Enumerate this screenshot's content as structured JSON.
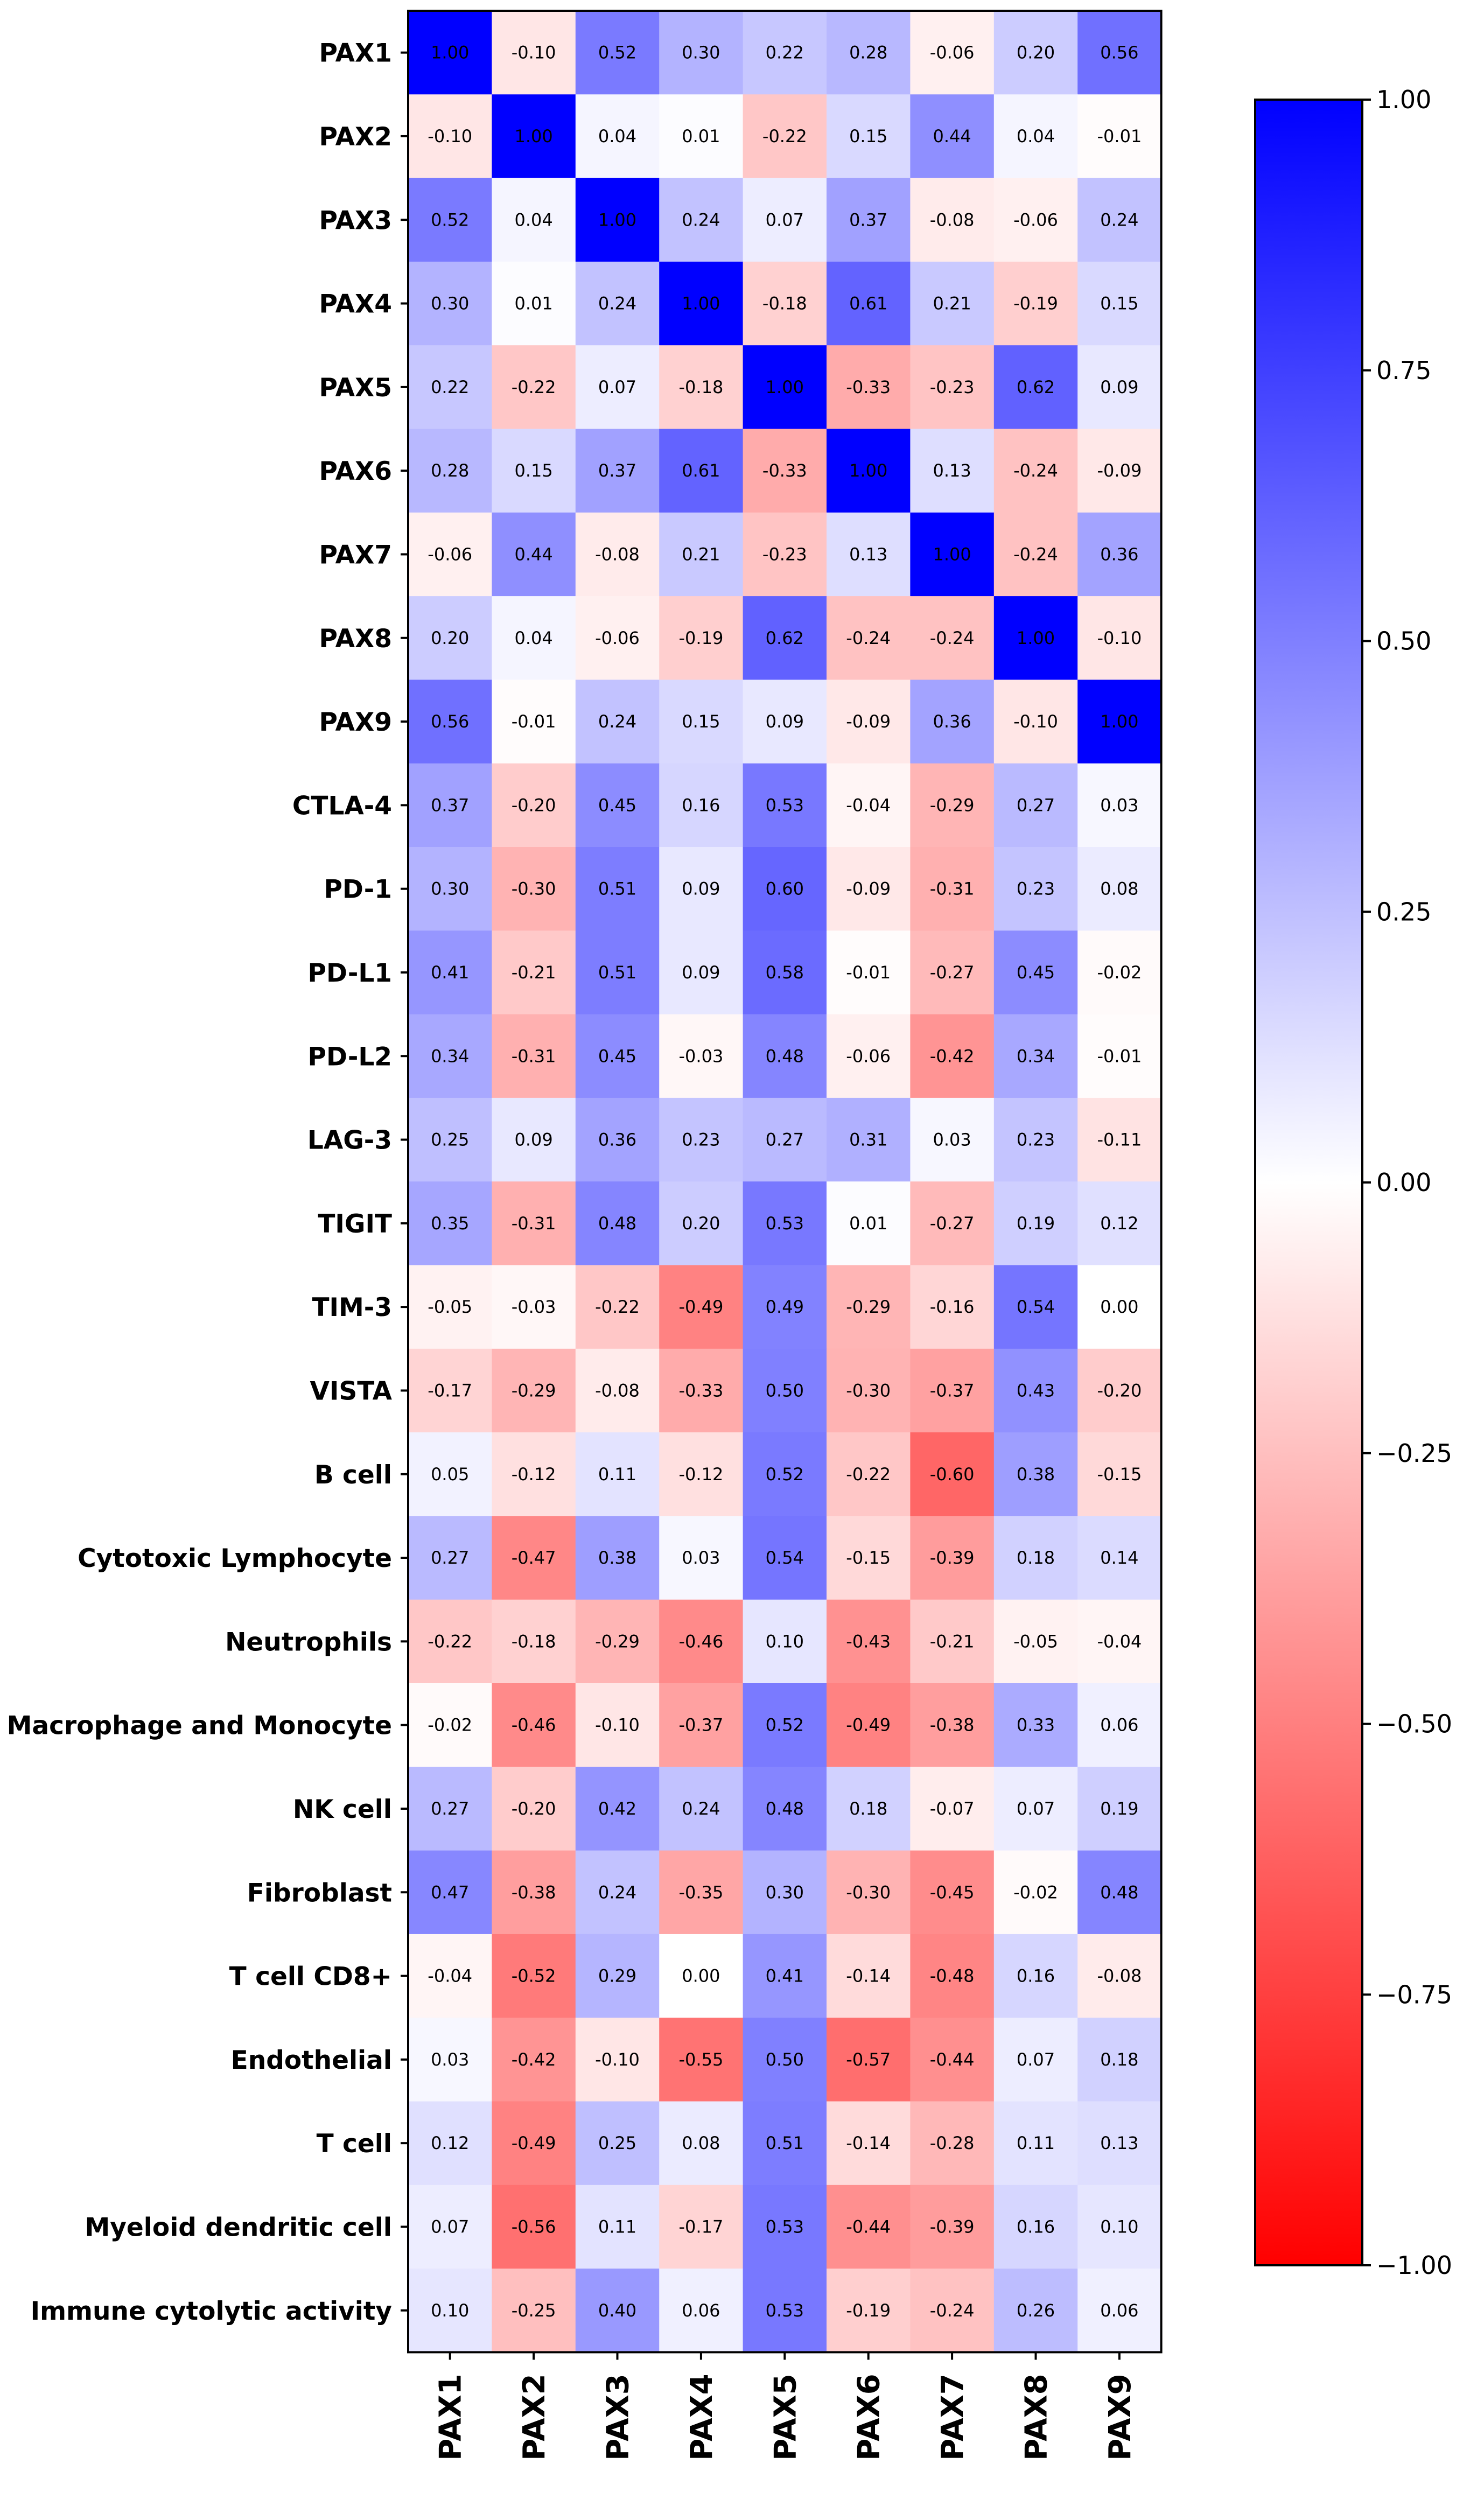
{
  "chart_data": {
    "type": "heatmap",
    "title": "",
    "xlabel": "",
    "ylabel": "",
    "columns": [
      "PAX1",
      "PAX2",
      "PAX3",
      "PAX4",
      "PAX5",
      "PAX6",
      "PAX7",
      "PAX8",
      "PAX9"
    ],
    "rows": [
      "PAX1",
      "PAX2",
      "PAX3",
      "PAX4",
      "PAX5",
      "PAX6",
      "PAX7",
      "PAX8",
      "PAX9",
      "CTLA-4",
      "PD-1",
      "PD-L1",
      "PD-L2",
      "LAG-3",
      "TIGIT",
      "TIM-3",
      "VISTA",
      "B cell",
      "Cytotoxic Lymphocyte",
      "Neutrophils",
      "Macrophage and Monocyte",
      "NK cell",
      "Fibroblast",
      "T cell CD8+",
      "Endothelial",
      "T cell",
      "Myeloid dendritic cell",
      "Immune cytolytic activity"
    ],
    "values": [
      [
        1.0,
        -0.1,
        0.52,
        0.3,
        0.22,
        0.28,
        -0.06,
        0.2,
        0.56
      ],
      [
        -0.1,
        1.0,
        0.04,
        0.01,
        -0.22,
        0.15,
        0.44,
        0.04,
        -0.01
      ],
      [
        0.52,
        0.04,
        1.0,
        0.24,
        0.07,
        0.37,
        -0.08,
        -0.06,
        0.24
      ],
      [
        0.3,
        0.01,
        0.24,
        1.0,
        -0.18,
        0.61,
        0.21,
        -0.19,
        0.15
      ],
      [
        0.22,
        -0.22,
        0.07,
        -0.18,
        1.0,
        -0.33,
        -0.23,
        0.62,
        0.09
      ],
      [
        0.28,
        0.15,
        0.37,
        0.61,
        -0.33,
        1.0,
        0.13,
        -0.24,
        -0.09
      ],
      [
        -0.06,
        0.44,
        -0.08,
        0.21,
        -0.23,
        0.13,
        1.0,
        -0.24,
        0.36
      ],
      [
        0.2,
        0.04,
        -0.06,
        -0.19,
        0.62,
        -0.24,
        -0.24,
        1.0,
        -0.1
      ],
      [
        0.56,
        -0.01,
        0.24,
        0.15,
        0.09,
        -0.09,
        0.36,
        -0.1,
        1.0
      ],
      [
        0.37,
        -0.2,
        0.45,
        0.16,
        0.53,
        -0.04,
        -0.29,
        0.27,
        0.03
      ],
      [
        0.3,
        -0.3,
        0.51,
        0.09,
        0.6,
        -0.09,
        -0.31,
        0.23,
        0.08
      ],
      [
        0.41,
        -0.21,
        0.51,
        0.09,
        0.58,
        -0.01,
        -0.27,
        0.45,
        -0.02
      ],
      [
        0.34,
        -0.31,
        0.45,
        -0.03,
        0.48,
        -0.06,
        -0.42,
        0.34,
        -0.01
      ],
      [
        0.25,
        0.09,
        0.36,
        0.23,
        0.27,
        0.31,
        0.03,
        0.23,
        -0.11
      ],
      [
        0.35,
        -0.31,
        0.48,
        0.2,
        0.53,
        0.01,
        -0.27,
        0.19,
        0.12
      ],
      [
        -0.05,
        -0.03,
        -0.22,
        -0.49,
        0.49,
        -0.29,
        -0.16,
        0.54,
        0.0
      ],
      [
        -0.17,
        -0.29,
        -0.08,
        -0.33,
        0.5,
        -0.3,
        -0.37,
        0.43,
        -0.2
      ],
      [
        0.05,
        -0.12,
        0.11,
        -0.12,
        0.52,
        -0.22,
        -0.6,
        0.38,
        -0.15
      ],
      [
        0.27,
        -0.47,
        0.38,
        0.03,
        0.54,
        -0.15,
        -0.39,
        0.18,
        0.14
      ],
      [
        -0.22,
        -0.18,
        -0.29,
        -0.46,
        0.1,
        -0.43,
        -0.21,
        -0.05,
        -0.04
      ],
      [
        -0.02,
        -0.46,
        -0.1,
        -0.37,
        0.52,
        -0.49,
        -0.38,
        0.33,
        0.06
      ],
      [
        0.27,
        -0.2,
        0.42,
        0.24,
        0.48,
        0.18,
        -0.07,
        0.07,
        0.19
      ],
      [
        0.47,
        -0.38,
        0.24,
        -0.35,
        0.3,
        -0.3,
        -0.45,
        -0.02,
        0.48
      ],
      [
        -0.04,
        -0.52,
        0.29,
        0.0,
        0.41,
        -0.14,
        -0.48,
        0.16,
        -0.08
      ],
      [
        0.03,
        -0.42,
        -0.1,
        -0.55,
        0.5,
        -0.57,
        -0.44,
        0.07,
        0.18
      ],
      [
        0.12,
        -0.49,
        0.25,
        0.08,
        0.51,
        -0.14,
        -0.28,
        0.11,
        0.13
      ],
      [
        0.07,
        -0.56,
        0.11,
        -0.17,
        0.53,
        -0.44,
        -0.39,
        0.16,
        0.1
      ],
      [
        0.1,
        -0.25,
        0.4,
        0.06,
        0.53,
        -0.19,
        -0.24,
        0.26,
        0.06
      ]
    ],
    "colormap": {
      "name": "bwr_r",
      "negative": "#ff0000",
      "zero": "#ffffff",
      "positive": "#0000ff"
    },
    "zlim": [
      -1,
      1
    ],
    "colorbar": {
      "ticks": [
        1.0,
        0.75,
        0.5,
        0.25,
        0.0,
        -0.25,
        -0.5,
        -0.75,
        -1.0
      ],
      "tick_labels": [
        "1.00",
        "0.75",
        "0.50",
        "0.25",
        "0.00",
        "−0.25",
        "−0.50",
        "−0.75",
        "−1.00"
      ],
      "placement": "right"
    },
    "annotations": "cell values shown with 2 decimals"
  }
}
